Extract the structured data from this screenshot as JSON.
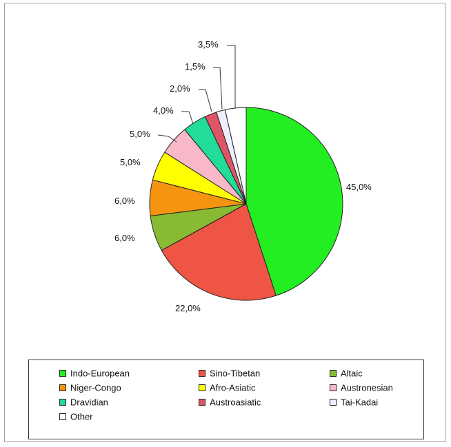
{
  "chart_data": {
    "type": "pie",
    "title": "",
    "slices": [
      {
        "name": "Indo-European",
        "value": 45.0,
        "label": "45,0%",
        "color": "#22ee22"
      },
      {
        "name": "Sino-Tibetan",
        "value": 22.0,
        "label": "22,0%",
        "color": "#ee5544"
      },
      {
        "name": "Altaic",
        "value": 6.0,
        "label": "6,0%",
        "color": "#88bb33"
      },
      {
        "name": "Niger-Congo",
        "value": 6.0,
        "label": "6,0%",
        "color": "#f5950f"
      },
      {
        "name": "Afro-Asiatic",
        "value": 5.0,
        "label": "5,0%",
        "color": "#ffff00"
      },
      {
        "name": "Austronesian",
        "value": 5.0,
        "label": "5,0%",
        "color": "#f8b8c8"
      },
      {
        "name": "Dravidian",
        "value": 4.0,
        "label": "4,0%",
        "color": "#22dd99"
      },
      {
        "name": "Austroasiatic",
        "value": 2.0,
        "label": "2,0%",
        "color": "#dd5566"
      },
      {
        "name": "Tai-Kadai",
        "value": 1.5,
        "label": "1,5%",
        "color": "#eeeeff"
      },
      {
        "name": "Other",
        "value": 3.5,
        "label": "3,5%",
        "color": "#ffffff"
      }
    ],
    "legend_placement": "bottom"
  }
}
